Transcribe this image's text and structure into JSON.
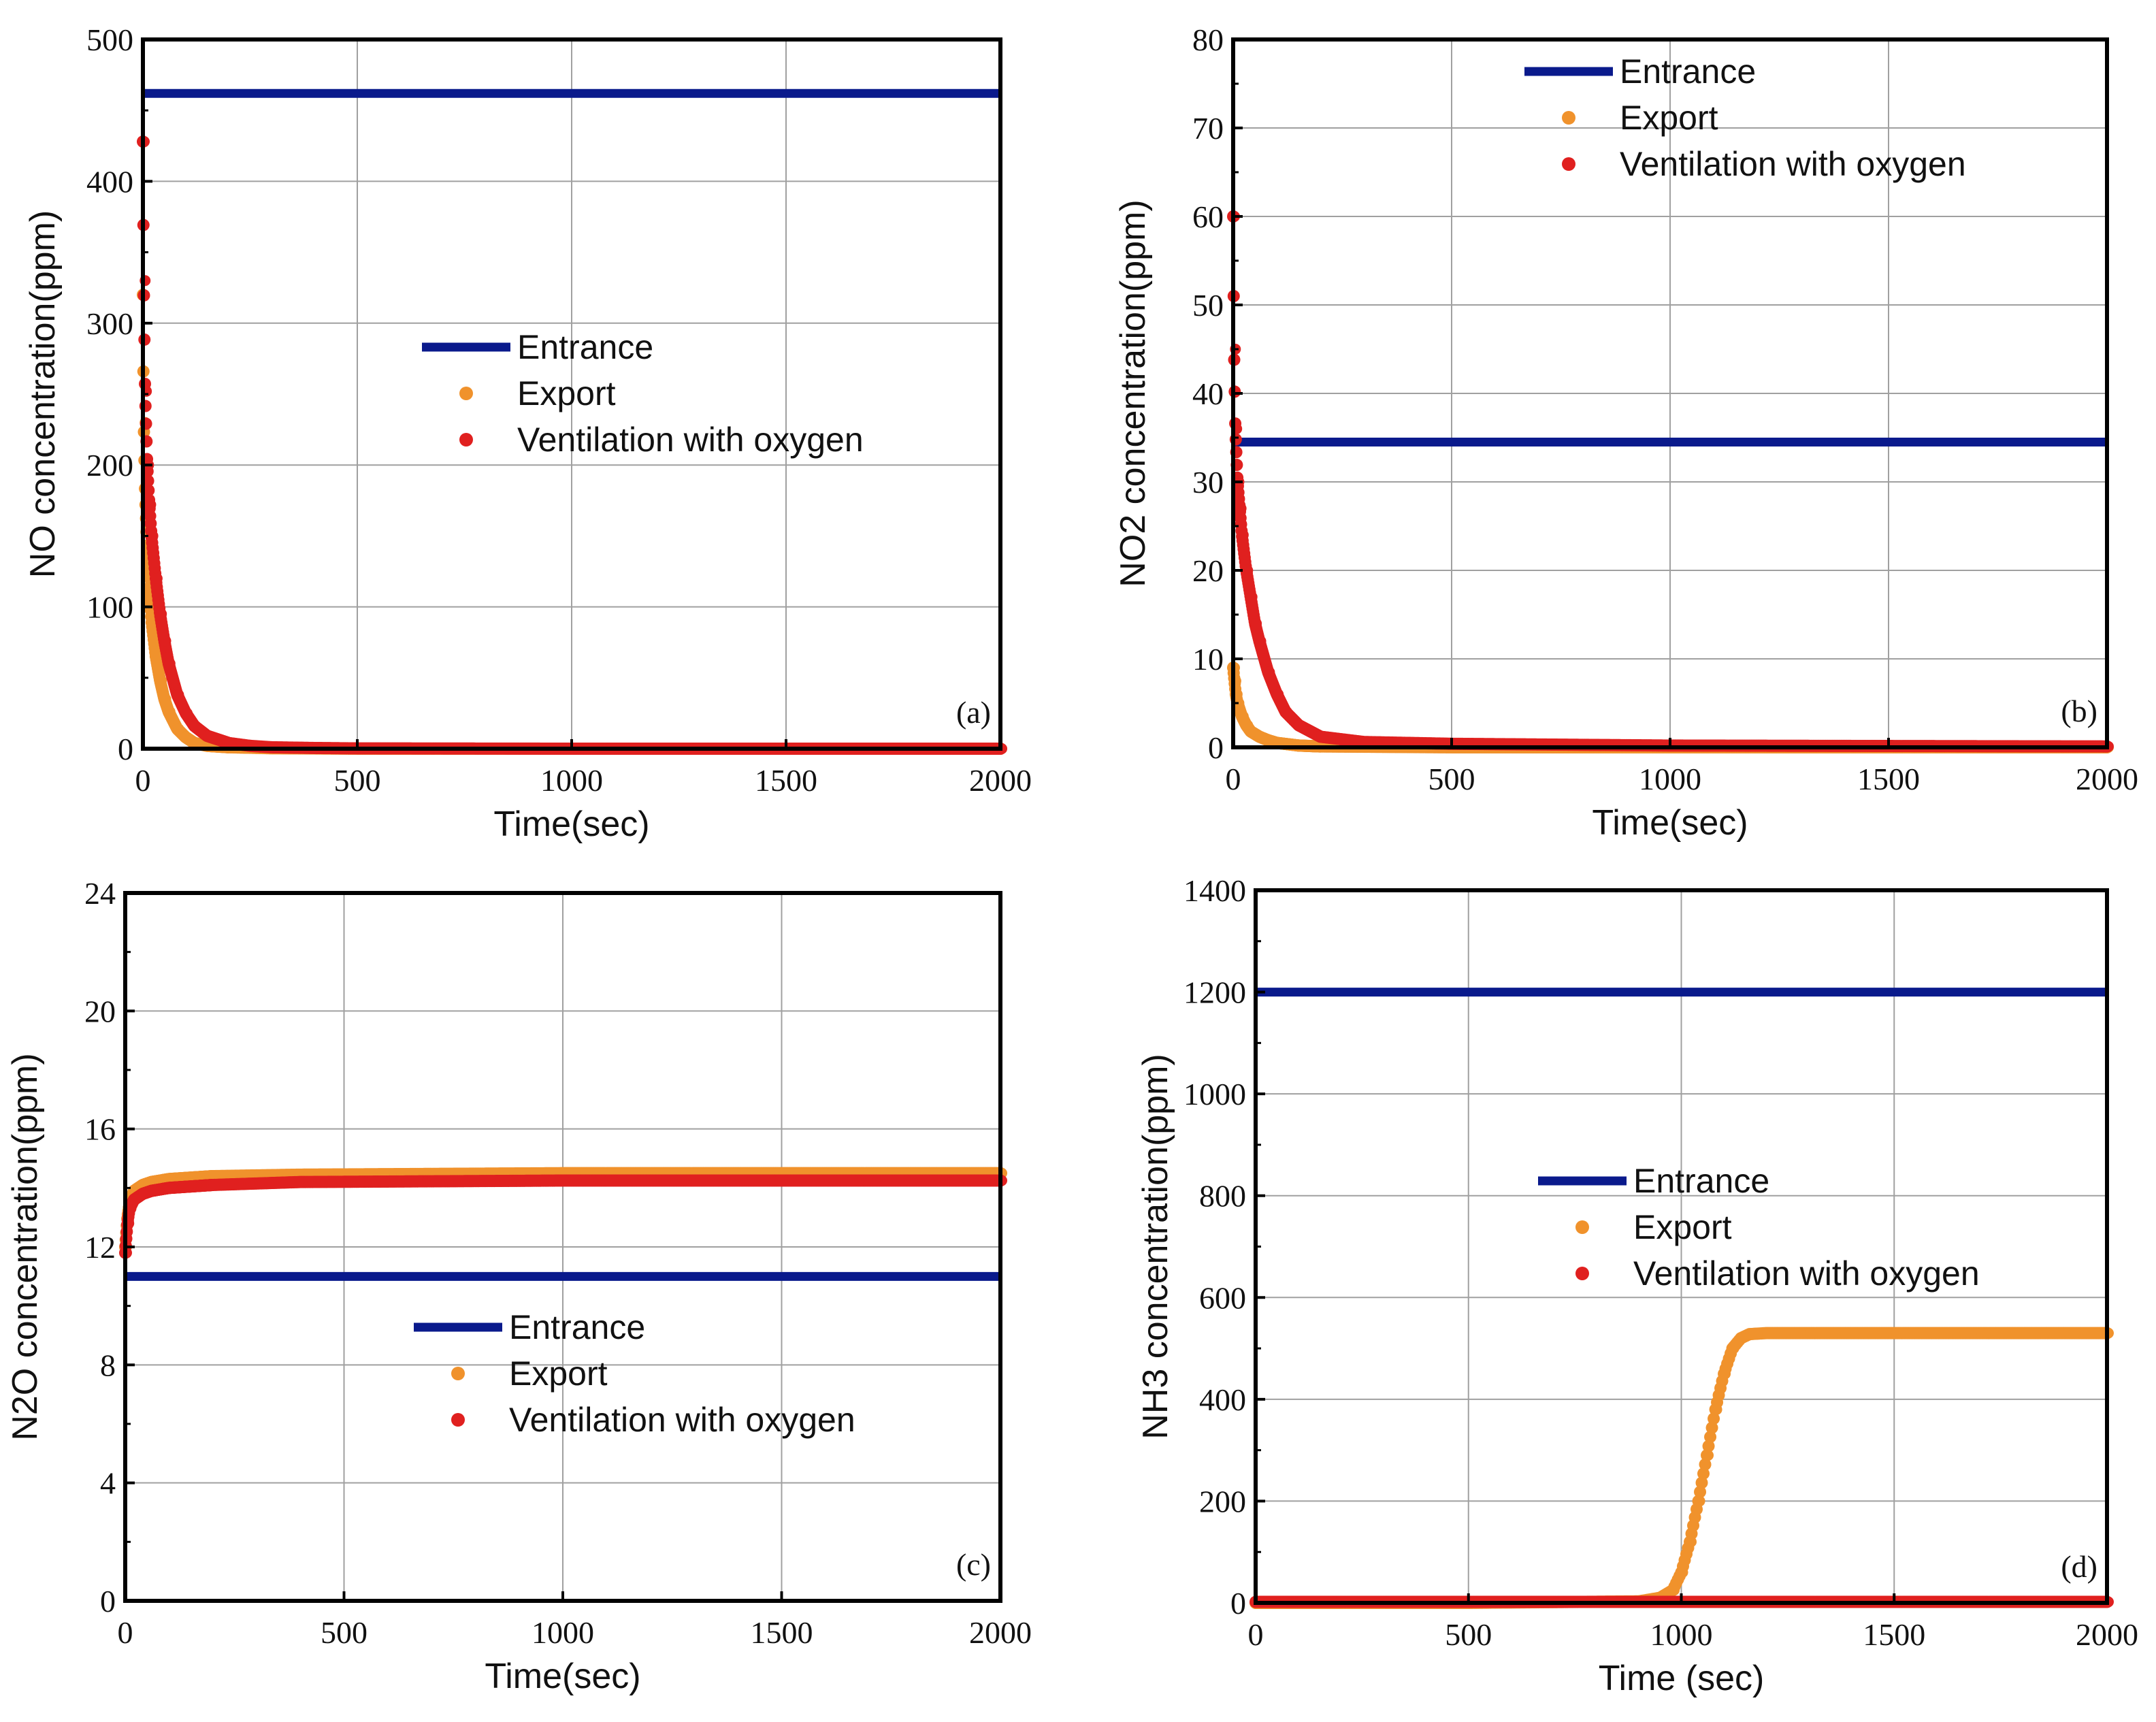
{
  "colors": {
    "entrance": "#0a1a8c",
    "export": "#f0922c",
    "ventilation": "#e0201f",
    "grid": "#a0a0a0",
    "axis": "#000000"
  },
  "chart_data": [
    {
      "panel": "(a)",
      "type": "line",
      "xlabel": "Time(sec)",
      "ylabel": "NO concentration(ppm)",
      "xlim": [
        0,
        2000
      ],
      "ylim": [
        0,
        500
      ],
      "xticks": [
        0,
        500,
        1000,
        1500,
        2000
      ],
      "yticks": [
        0,
        100,
        200,
        300,
        400,
        500
      ],
      "legend": [
        "Entrance",
        "Export",
        "Ventilation with oxygen"
      ],
      "legend_position": "center",
      "series": [
        {
          "name": "Entrance",
          "style": "line",
          "x": [
            0,
            2000
          ],
          "y": [
            462,
            462
          ]
        },
        {
          "name": "Export",
          "style": "markers",
          "x": [
            0,
            2,
            5,
            10,
            15,
            20,
            30,
            40,
            50,
            60,
            80,
            100,
            120,
            150,
            200,
            300,
            500,
            1000,
            2000
          ],
          "y": [
            320,
            230,
            180,
            140,
            110,
            90,
            65,
            48,
            35,
            26,
            14,
            8,
            4,
            2,
            1,
            0.3,
            0,
            0,
            0
          ]
        },
        {
          "name": "Ventilation with oxygen",
          "style": "markers",
          "x": [
            0,
            2,
            5,
            10,
            15,
            20,
            30,
            40,
            50,
            60,
            80,
            100,
            120,
            150,
            200,
            250,
            300,
            400,
            500,
            1000,
            2000
          ],
          "y": [
            428,
            330,
            252,
            200,
            172,
            150,
            120,
            95,
            76,
            60,
            38,
            25,
            16,
            9,
            4,
            2,
            1,
            0.5,
            0.2,
            0,
            0
          ]
        }
      ]
    },
    {
      "panel": "(b)",
      "type": "line",
      "xlabel": "Time(sec)",
      "ylabel": "NO2 concentration(ppm)",
      "xlim": [
        0,
        2000
      ],
      "ylim": [
        0,
        80
      ],
      "xticks": [
        0,
        500,
        1000,
        1500,
        2000
      ],
      "yticks": [
        0,
        10,
        20,
        30,
        40,
        50,
        60,
        70,
        80
      ],
      "legend": [
        "Entrance",
        "Export",
        "Ventilation with oxygen"
      ],
      "legend_position": "top-right",
      "series": [
        {
          "name": "Entrance",
          "style": "line",
          "x": [
            0,
            2000
          ],
          "y": [
            34.5,
            34.5
          ]
        },
        {
          "name": "Export",
          "style": "markers",
          "x": [
            0,
            3,
            6,
            10,
            20,
            30,
            40,
            60,
            80,
            100,
            150,
            200,
            500,
            2000
          ],
          "y": [
            9,
            7.5,
            6,
            5,
            3.5,
            2.5,
            1.8,
            1.2,
            0.8,
            0.5,
            0.2,
            0.1,
            0,
            0
          ]
        },
        {
          "name": "Ventilation with oxygen",
          "style": "markers",
          "x": [
            0,
            2,
            5,
            10,
            15,
            20,
            30,
            40,
            50,
            60,
            80,
            100,
            120,
            150,
            200,
            300,
            500,
            1000,
            2000
          ],
          "y": [
            60,
            45,
            36,
            30,
            27,
            24,
            20,
            17,
            14,
            12,
            8.5,
            6,
            4,
            2.5,
            1.2,
            0.6,
            0.4,
            0.2,
            0.1
          ]
        }
      ]
    },
    {
      "panel": "(c)",
      "type": "line",
      "xlabel": "Time(sec)",
      "ylabel": "N2O concentration(ppm)",
      "xlim": [
        0,
        2000
      ],
      "ylim": [
        0,
        24
      ],
      "xticks": [
        0,
        500,
        1000,
        1500,
        2000
      ],
      "yticks": [
        0,
        4,
        8,
        12,
        16,
        20,
        24
      ],
      "legend": [
        "Entrance",
        "Export",
        "Ventilation with oxygen"
      ],
      "legend_position": "center",
      "series": [
        {
          "name": "Entrance",
          "style": "line",
          "x": [
            0,
            2000
          ],
          "y": [
            11,
            11
          ]
        },
        {
          "name": "Export",
          "style": "markers",
          "x": [
            0,
            5,
            10,
            20,
            40,
            60,
            100,
            200,
            400,
            1000,
            2000
          ],
          "y": [
            12,
            13,
            13.5,
            13.9,
            14.1,
            14.2,
            14.3,
            14.4,
            14.45,
            14.5,
            14.5
          ]
        },
        {
          "name": "Ventilation with oxygen",
          "style": "markers",
          "x": [
            0,
            5,
            10,
            20,
            40,
            60,
            100,
            200,
            400,
            1000,
            2000
          ],
          "y": [
            11.8,
            12.8,
            13.3,
            13.6,
            13.8,
            13.9,
            14.0,
            14.1,
            14.2,
            14.25,
            14.25
          ]
        }
      ]
    },
    {
      "panel": "(d)",
      "type": "line",
      "xlabel": "Time (sec)",
      "ylabel": "NH3 concentration(ppm)",
      "xlim": [
        0,
        2000
      ],
      "ylim": [
        0,
        1400
      ],
      "xticks": [
        0,
        500,
        1000,
        1500,
        2000
      ],
      "yticks": [
        0,
        200,
        400,
        600,
        800,
        1000,
        1200,
        1400
      ],
      "legend": [
        "Entrance",
        "Export",
        "Ventilation with oxygen"
      ],
      "legend_position": "center-right",
      "series": [
        {
          "name": "Entrance",
          "style": "line",
          "x": [
            0,
            2000
          ],
          "y": [
            1200,
            1200
          ]
        },
        {
          "name": "Export",
          "style": "markers",
          "x": [
            0,
            500,
            900,
            950,
            980,
            1000,
            1020,
            1040,
            1060,
            1080,
            1100,
            1120,
            1140,
            1160,
            1200,
            1300,
            2000
          ],
          "y": [
            0,
            0,
            3,
            10,
            25,
            60,
            120,
            200,
            290,
            380,
            450,
            500,
            520,
            528,
            530,
            530,
            530
          ]
        },
        {
          "name": "Ventilation with oxygen",
          "style": "markers",
          "x": [
            0,
            500,
            1000,
            1500,
            2000
          ],
          "y": [
            2,
            2,
            2,
            2,
            2
          ]
        }
      ]
    }
  ]
}
